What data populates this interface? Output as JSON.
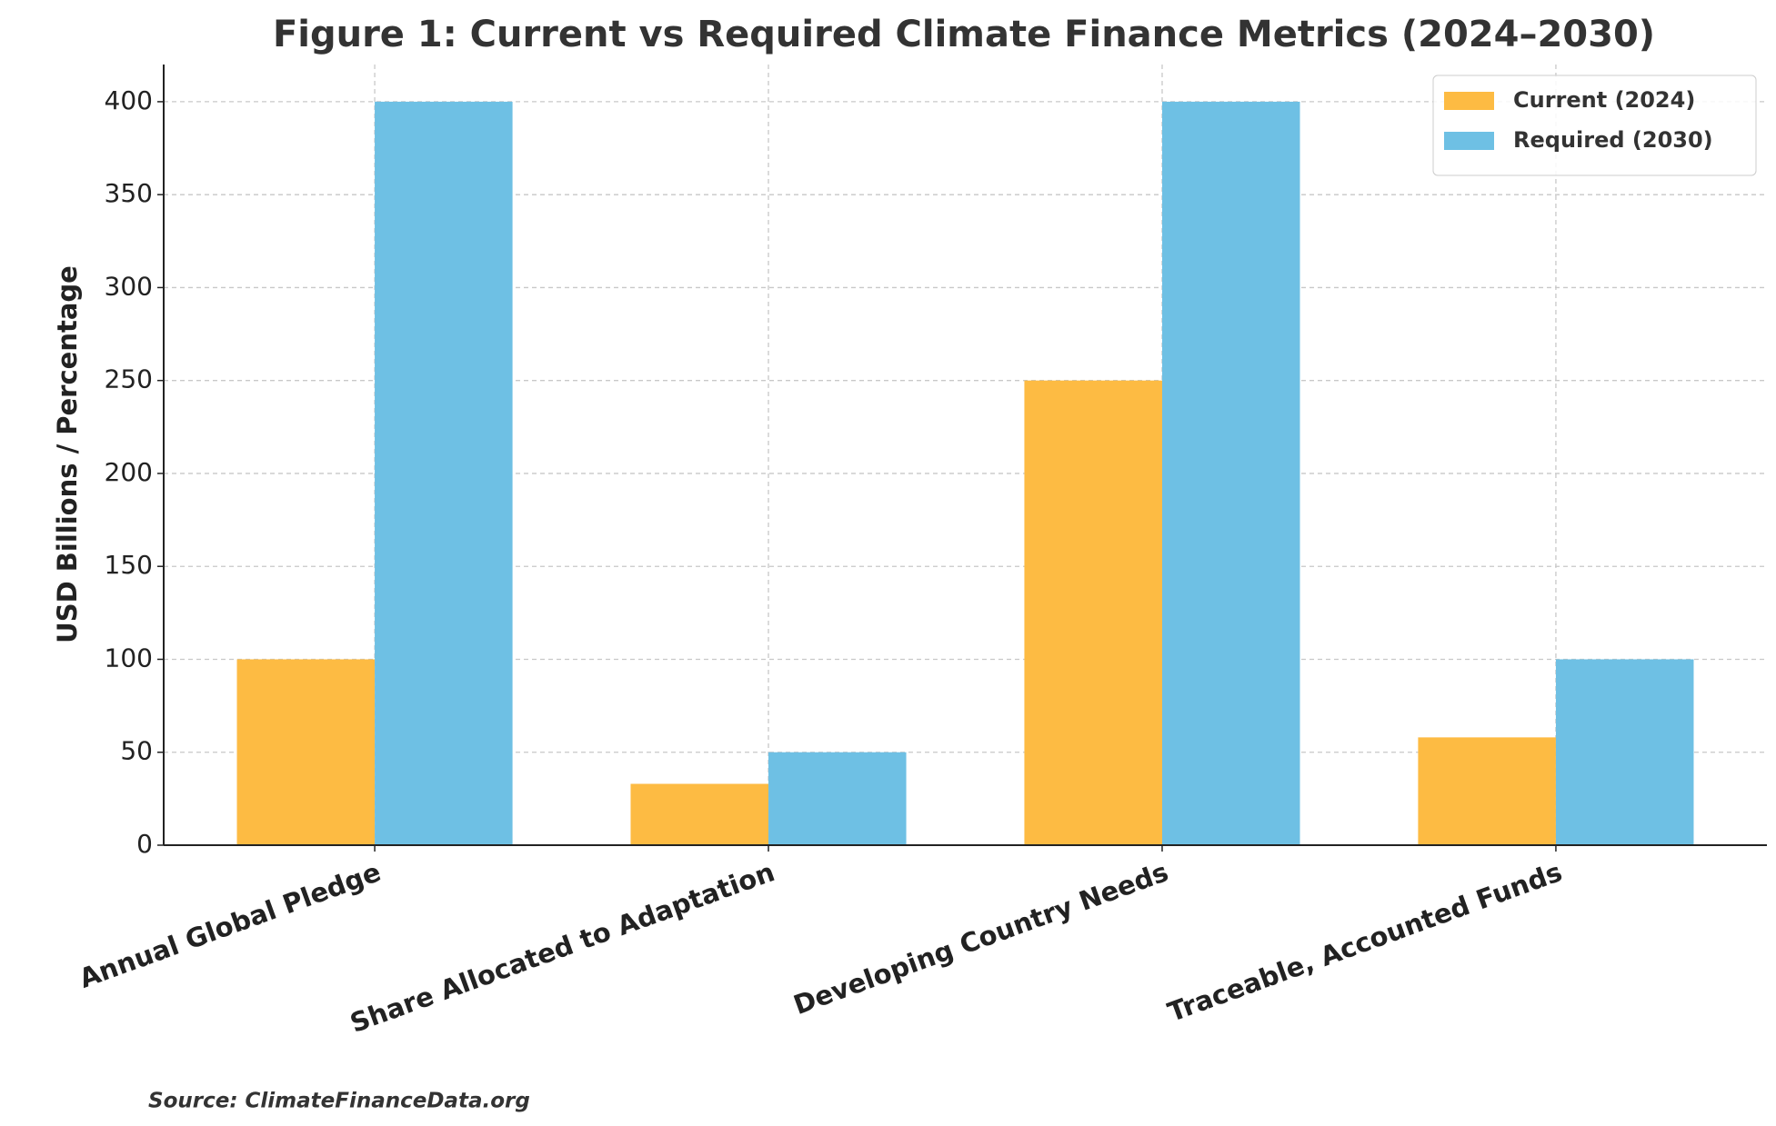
{
  "chart_data": {
    "type": "bar",
    "title": "Figure 1: Current vs Required Climate Finance Metrics (2024–2030)",
    "ylabel": "USD Billions / Percentage",
    "source": "Source: ClimateFinanceData.org",
    "categories": [
      "Annual Global Pledge",
      "Share Allocated to Adaptation",
      "Developing Country Needs",
      "Traceable, Accounted Funds"
    ],
    "series": [
      {
        "name": "Current (2024)",
        "color": "#fdbb43",
        "values": [
          100,
          33,
          250,
          58
        ]
      },
      {
        "name": "Required (2030)",
        "color": "#6ec0e4",
        "values": [
          400,
          50,
          400,
          100
        ]
      }
    ],
    "ylim": [
      0,
      420
    ],
    "yticks": [
      0,
      50,
      100,
      150,
      200,
      250,
      300,
      350,
      400
    ],
    "grid": true,
    "legend": "upper right"
  }
}
